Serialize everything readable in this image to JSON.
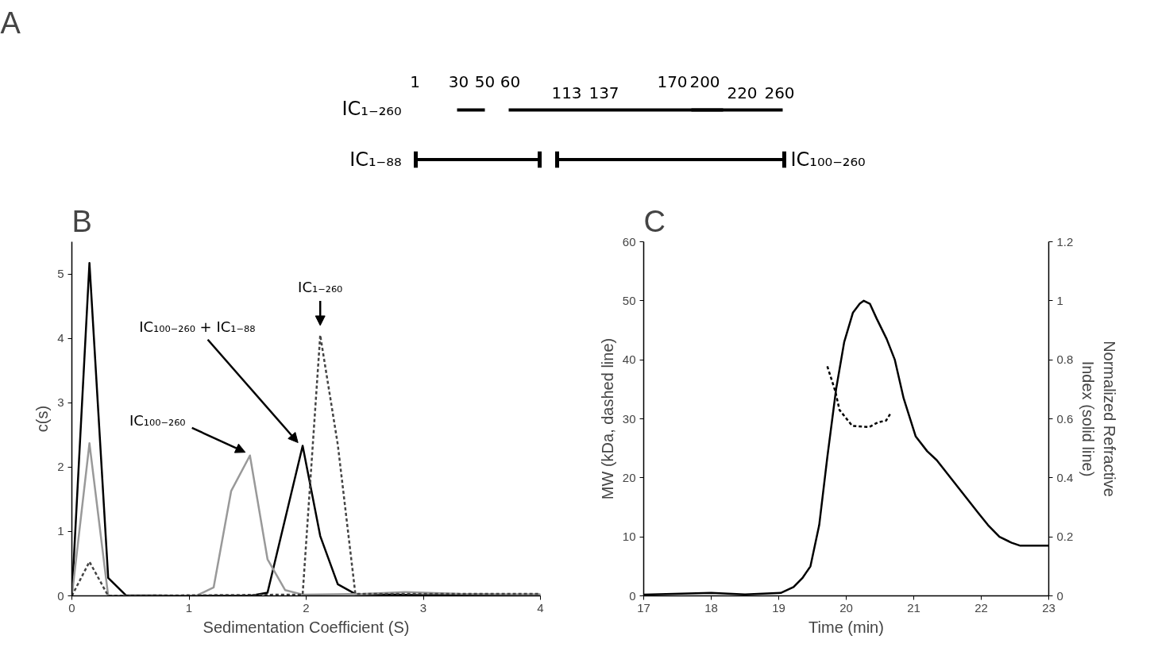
{
  "chart_data": [
    {
      "type": "other",
      "title": "A",
      "annotations": [
        "IC₁₋₂₆₀",
        "1",
        "30",
        "50",
        "60",
        "113",
        "137",
        "170",
        "200",
        "220",
        "260",
        "IC₁₋₈₈",
        "IC₁₀₀₋₂₆₀"
      ]
    },
    {
      "type": "line",
      "title": "B",
      "xlabel": "Sedimentation Coefficient (S)",
      "ylabel": "c(s)",
      "xlim": [
        0,
        4
      ],
      "xticks": [
        0,
        1,
        2,
        3,
        4
      ],
      "ylim": [
        0,
        5.5
      ],
      "yticks": [
        0,
        1,
        2,
        3,
        4,
        5
      ],
      "grid": false,
      "marker": "none",
      "series": [
        {
          "color": "#000000",
          "line_style": "solid",
          "x": [
            0,
            0.15,
            0.31,
            0.46,
            1.06,
            1.52,
            1.67,
            1.97,
            2.12,
            2.27,
            2.42,
            3.0,
            4.0
          ],
          "values": [
            0,
            5.17,
            0.28,
            0.01,
            0,
            0,
            0.05,
            2.33,
            0.93,
            0.18,
            0.03,
            0.01,
            0.02
          ]
        },
        {
          "color": "#999999",
          "line_style": "solid",
          "x": [
            0,
            0.15,
            0.31,
            1.06,
            1.21,
            1.36,
            1.52,
            1.67,
            1.82,
            1.97,
            2.5,
            2.85,
            3.3,
            4.0
          ],
          "values": [
            0,
            2.37,
            0,
            0,
            0.13,
            1.63,
            2.18,
            0.57,
            0.09,
            0.02,
            0.03,
            0.06,
            0.03,
            0.02
          ]
        },
        {
          "color": "#444444",
          "line_style": "dashed",
          "x": [
            0,
            0.15,
            0.31,
            1.97,
            2.12,
            2.27,
            2.42,
            4.0
          ],
          "values": [
            0,
            0.53,
            0,
            0.02,
            4.05,
            2.35,
            0.03,
            0.03
          ]
        }
      ],
      "annotations": [
        {
          "text": "IC₁₋₂₆₀",
          "x": 2.12,
          "y": 4.05
        },
        {
          "text": "IC₁₀₀₋₂₆₀ + IC₁₋₈₈",
          "x": 1.97,
          "y": 2.33
        },
        {
          "text": "IC₁₀₀₋₂₆₀",
          "x": 1.52,
          "y": 2.18
        }
      ]
    },
    {
      "type": "line",
      "title": "C",
      "xlabel": "Time (min)",
      "ylabel": "MW (kDa, dashed line)",
      "y2label": "Normalized Refractive Index (solid line)",
      "xlim": [
        17,
        23
      ],
      "xticks": [
        17,
        18,
        19,
        20,
        21,
        22,
        23
      ],
      "ylim": [
        0,
        60
      ],
      "yticks": [
        0,
        10,
        20,
        30,
        40,
        50,
        60
      ],
      "y2lim": [
        0,
        1.2
      ],
      "y2ticks": [
        0,
        0.2,
        0.4,
        0.6,
        0.8,
        1,
        1.2
      ],
      "grid": false,
      "marker": "none",
      "series": [
        {
          "color": "#000000",
          "line_style": "solid",
          "axis": "y2",
          "x": [
            17,
            18,
            18.5,
            19.03,
            19.22,
            19.35,
            19.47,
            19.6,
            19.72,
            19.85,
            19.97,
            20.1,
            20.2,
            20.26,
            20.35,
            20.45,
            20.6,
            20.72,
            20.85,
            21.03,
            21.2,
            21.34,
            21.65,
            21.96,
            22.1,
            22.27,
            22.45,
            22.58,
            23
          ],
          "values": [
            0.004,
            0.01,
            0.005,
            0.01,
            0.03,
            0.06,
            0.1,
            0.24,
            0.47,
            0.7,
            0.86,
            0.96,
            0.99,
            1.0,
            0.99,
            0.94,
            0.87,
            0.8,
            0.67,
            0.54,
            0.49,
            0.46,
            0.37,
            0.28,
            0.24,
            0.2,
            0.18,
            0.17,
            0.17
          ]
        },
        {
          "color": "#000000",
          "line_style": "dashed",
          "x": [
            19.72,
            19.84,
            19.9,
            20.09,
            20.34,
            20.47,
            20.59,
            20.65
          ],
          "values": [
            38.9,
            34.6,
            31.5,
            28.8,
            28.6,
            29.4,
            29.7,
            30.8
          ]
        }
      ]
    }
  ]
}
